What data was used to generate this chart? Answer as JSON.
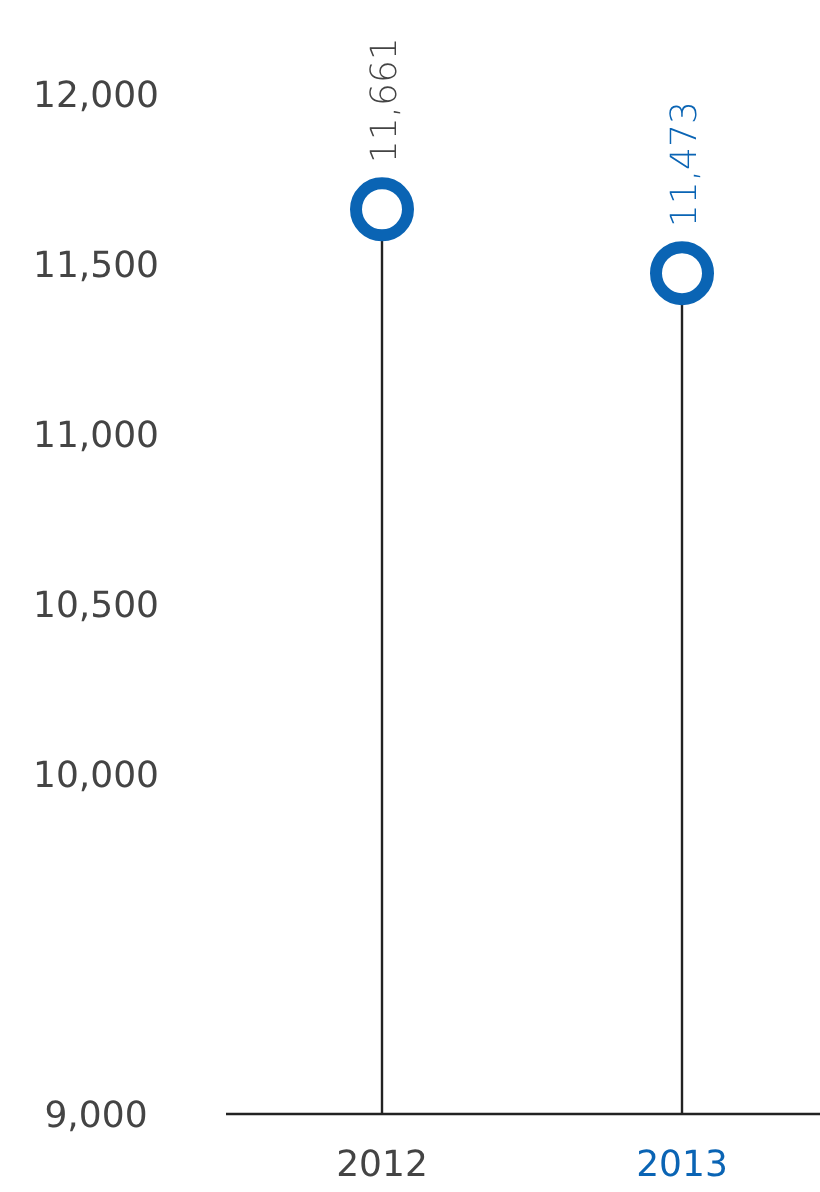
{
  "chart_data": {
    "type": "lollipop",
    "categories": [
      "2012",
      "2013"
    ],
    "values": [
      11661,
      11473
    ],
    "color": "#0a64b4",
    "ylim": [
      9000,
      12000
    ],
    "yticks": [
      {
        "value": 9000,
        "label": "9,000"
      },
      {
        "value": 10000,
        "label": "10,000"
      },
      {
        "value": 10500,
        "label": "10,500"
      },
      {
        "value": 11000,
        "label": "11,000"
      },
      {
        "value": 11500,
        "label": "11,500"
      },
      {
        "value": 12000,
        "label": "12,000"
      }
    ],
    "value_labels": [
      "11,661",
      "11,473"
    ],
    "marker": "circle"
  }
}
